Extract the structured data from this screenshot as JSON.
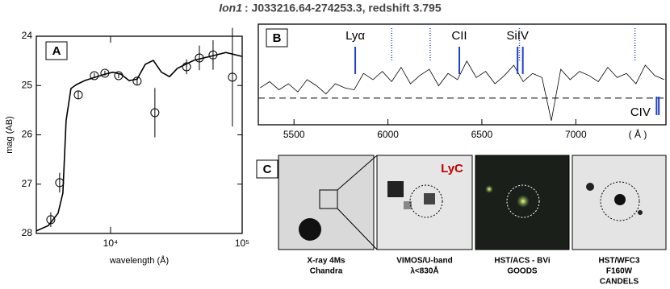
{
  "title": {
    "name": "Ion1",
    "text": ": J033216.64-274253.3,  redshift 3.795"
  },
  "chart_data": [
    {
      "type": "scatter",
      "panel_label": "A",
      "xlabel": "wavelength (Å)",
      "ylabel": "mag (AB)",
      "log_x": true,
      "xlim": [
        2730,
        100000
      ],
      "ylim": [
        28,
        24
      ],
      "xticks": [
        {
          "value": 10000,
          "label": "10⁴"
        },
        {
          "value": 100000,
          "label": "10⁵"
        }
      ],
      "yticks": [
        24,
        25,
        26,
        27,
        28
      ],
      "color": "#000000",
      "x": [
        3516,
        4105,
        5690,
        7530,
        9060,
        11520,
        15930,
        21720,
        37800,
        47300,
        60100,
        84300
      ],
      "values": [
        27.72,
        26.97,
        25.19,
        24.8,
        24.75,
        24.8,
        24.91,
        25.55,
        24.62,
        24.44,
        24.38,
        24.83
      ],
      "errors": [
        0.15,
        0.2,
        0.08,
        0.05,
        0.05,
        0.05,
        0.07,
        0.5,
        0.15,
        0.25,
        0.3,
        1.0
      ],
      "model_x": [
        2730,
        3370,
        3990,
        4345,
        4600,
        5000,
        5520,
        6360,
        7870,
        9060,
        10430,
        12020,
        13840,
        15930,
        18360,
        21130,
        24370,
        28060,
        32280,
        42850,
        56860,
        75340,
        100000
      ],
      "model_values": [
        27.95,
        27.84,
        27.59,
        27.18,
        25.71,
        25.06,
        24.98,
        24.9,
        24.82,
        24.77,
        24.73,
        24.77,
        24.9,
        24.87,
        24.57,
        24.49,
        24.73,
        24.82,
        24.65,
        24.49,
        24.41,
        24.33,
        24.41
      ]
    },
    {
      "type": "line",
      "panel_label": "B",
      "xlabel": "( Å )",
      "xlim": [
        5310,
        7480
      ],
      "ylim": [
        -1.3,
        3.6
      ],
      "xticks": [
        5500,
        6000,
        6500,
        7000
      ],
      "color": "#000000",
      "line_color": "#1f3fd0",
      "x": [
        5320,
        5370,
        5420,
        5470,
        5520,
        5570,
        5620,
        5670,
        5720,
        5770,
        5820,
        5870,
        5920,
        5970,
        6020,
        6070,
        6120,
        6170,
        6220,
        6270,
        6320,
        6370,
        6420,
        6470,
        6520,
        6570,
        6620,
        6670,
        6720,
        6770,
        6820,
        6870,
        6920,
        6970,
        7020,
        7070,
        7120,
        7170,
        7220,
        7270,
        7320,
        7370,
        7420,
        7470
      ],
      "values": [
        0.5,
        0.8,
        0.4,
        0.7,
        0.3,
        0.9,
        0.6,
        0.2,
        0.7,
        0.5,
        0.4,
        1.2,
        0.9,
        1.3,
        0.8,
        1.5,
        0.7,
        1.1,
        1.4,
        0.6,
        1.2,
        0.9,
        1.8,
        1.0,
        1.3,
        0.7,
        1.1,
        1.6,
        0.8,
        1.2,
        1.0,
        -1.1,
        1.4,
        0.9,
        1.3,
        1.1,
        0.8,
        1.5,
        1.0,
        1.2,
        0.7,
        1.6,
        1.1,
        0.9
      ],
      "lines": [
        {
          "label": "Lyα",
          "wavelengths": [
            5826
          ]
        },
        {
          "label": "CII",
          "wavelengths": [
            6380
          ]
        },
        {
          "label": "SiIV",
          "wavelengths": [
            6690,
            6718
          ]
        },
        {
          "label": "CIV",
          "wavelengths": [
            7430,
            7442
          ]
        }
      ],
      "dotted_lines": [
        6020,
        6225,
        6700,
        7315
      ]
    }
  ],
  "panel_c": {
    "label": "C",
    "lyc": "LyC",
    "images": [
      {
        "caption": [
          "X-ray 4Ms",
          "Chandra"
        ]
      },
      {
        "caption": [
          "VIMOS/U-band",
          "λ<830Å"
        ]
      },
      {
        "caption": [
          "HST/ACS - BVi",
          "GOODS"
        ]
      },
      {
        "caption": [
          "HST/WFC3",
          "F160W",
          "CANDELS"
        ]
      }
    ]
  }
}
